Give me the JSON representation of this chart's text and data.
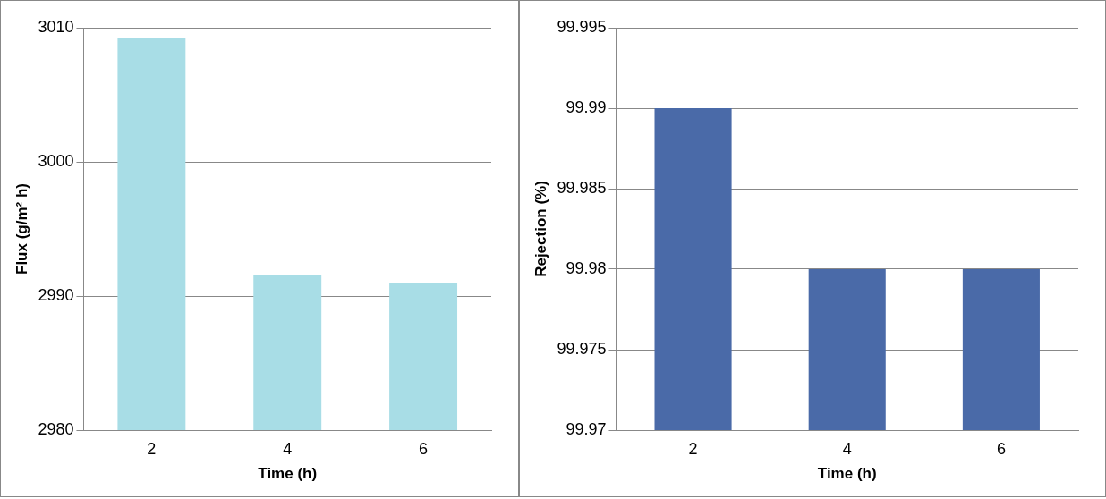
{
  "chart_data": [
    {
      "type": "bar",
      "xlabel": "Time (h)",
      "ylabel": "Flux (g/m² h)",
      "categories": [
        "2",
        "4",
        "6"
      ],
      "values": [
        3009.2,
        2991.6,
        2991.0
      ],
      "color": "#a8dde6",
      "ylim": [
        2980,
        3010
      ],
      "yticks": [
        2980,
        2990,
        3000,
        3010
      ],
      "grid": "y",
      "legend": false
    },
    {
      "type": "bar",
      "xlabel": "Time (h)",
      "ylabel": "Rejection (%)",
      "categories": [
        "2",
        "4",
        "6"
      ],
      "values": [
        99.99,
        99.98,
        99.98
      ],
      "color": "#4a6aa8",
      "ylim": [
        99.97,
        99.995
      ],
      "yticks": [
        99.97,
        99.975,
        99.98,
        99.985,
        99.99,
        99.995
      ],
      "grid": "y",
      "legend": false
    }
  ]
}
